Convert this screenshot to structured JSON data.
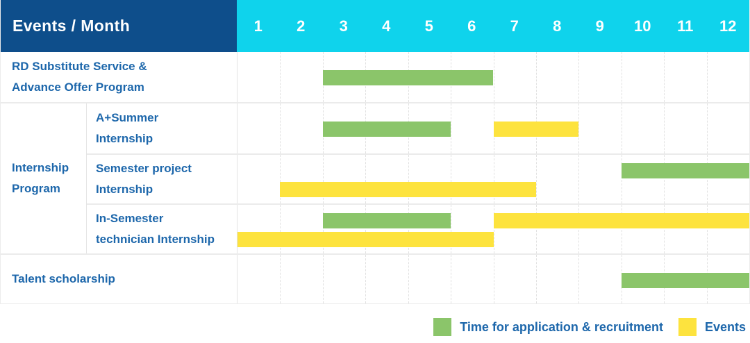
{
  "header": {
    "title": "Events / Month",
    "months": [
      "1",
      "2",
      "3",
      "4",
      "5",
      "6",
      "7",
      "8",
      "9",
      "10",
      "11",
      "12"
    ]
  },
  "colors": {
    "header_bg": "#0e4e8b",
    "months_bg": "#0fd3ec",
    "header_text": "#ffffff",
    "label_text": "#1d67ab",
    "application": "#8bc56a",
    "events": "#fde33e"
  },
  "sections": [
    {
      "type": "simple",
      "label_lines": [
        "RD Substitute Service &",
        "Advance Offer Program"
      ],
      "bars": [
        {
          "kind": "application",
          "from": 2,
          "to": 6,
          "lane": "center"
        }
      ]
    },
    {
      "type": "group",
      "label_lines": [
        "Internship",
        "Program"
      ],
      "children": [
        {
          "label_lines": [
            "A+Summer",
            "Internship"
          ],
          "bars": [
            {
              "kind": "application",
              "from": 2,
              "to": 5,
              "lane": "center"
            },
            {
              "kind": "events",
              "from": 6,
              "to": 8,
              "lane": "center"
            }
          ]
        },
        {
          "label_lines": [
            "Semester project",
            "Internship"
          ],
          "bars": [
            {
              "kind": "application",
              "from": 9,
              "to": 12,
              "lane": "top"
            },
            {
              "kind": "events",
              "from": 1,
              "to": 7,
              "lane": "bottom"
            }
          ]
        },
        {
          "label_lines": [
            "In-Semester",
            "technician Internship"
          ],
          "bars": [
            {
              "kind": "application",
              "from": 2,
              "to": 5,
              "lane": "top"
            },
            {
              "kind": "events",
              "from": 6,
              "to": 12,
              "lane": "top"
            },
            {
              "kind": "events",
              "from": 0,
              "to": 6,
              "lane": "bottom"
            }
          ]
        }
      ]
    },
    {
      "type": "simple",
      "label_lines": [
        "Talent scholarship"
      ],
      "bars": [
        {
          "kind": "application",
          "from": 9,
          "to": 12,
          "lane": "center"
        }
      ]
    }
  ],
  "legend": [
    {
      "kind": "application",
      "label": "Time for application & recruitment"
    },
    {
      "kind": "events",
      "label": "Events"
    }
  ],
  "chart_data": {
    "type": "table",
    "title": "Events / Month",
    "x_axis": {
      "label": "Month",
      "ticks": [
        1,
        2,
        3,
        4,
        5,
        6,
        7,
        8,
        9,
        10,
        11,
        12
      ]
    },
    "legend": [
      "Time for application & recruitment",
      "Events"
    ],
    "rows": [
      {
        "event": "RD Substitute Service & Advance Offer Program",
        "application_recruitment_months": [
          [
            3,
            6
          ]
        ],
        "events_months": []
      },
      {
        "event": "Internship Program - A+Summer Internship",
        "application_recruitment_months": [
          [
            3,
            5
          ]
        ],
        "events_months": [
          [
            7,
            8
          ]
        ]
      },
      {
        "event": "Internship Program - Semester project Internship",
        "application_recruitment_months": [
          [
            10,
            12
          ]
        ],
        "events_months": [
          [
            2,
            7
          ]
        ]
      },
      {
        "event": "Internship Program - In-Semester technician Internship",
        "application_recruitment_months": [
          [
            3,
            5
          ]
        ],
        "events_months": [
          [
            7,
            12
          ],
          [
            1,
            6
          ]
        ]
      },
      {
        "event": "Talent scholarship",
        "application_recruitment_months": [
          [
            10,
            12
          ]
        ],
        "events_months": []
      }
    ]
  }
}
